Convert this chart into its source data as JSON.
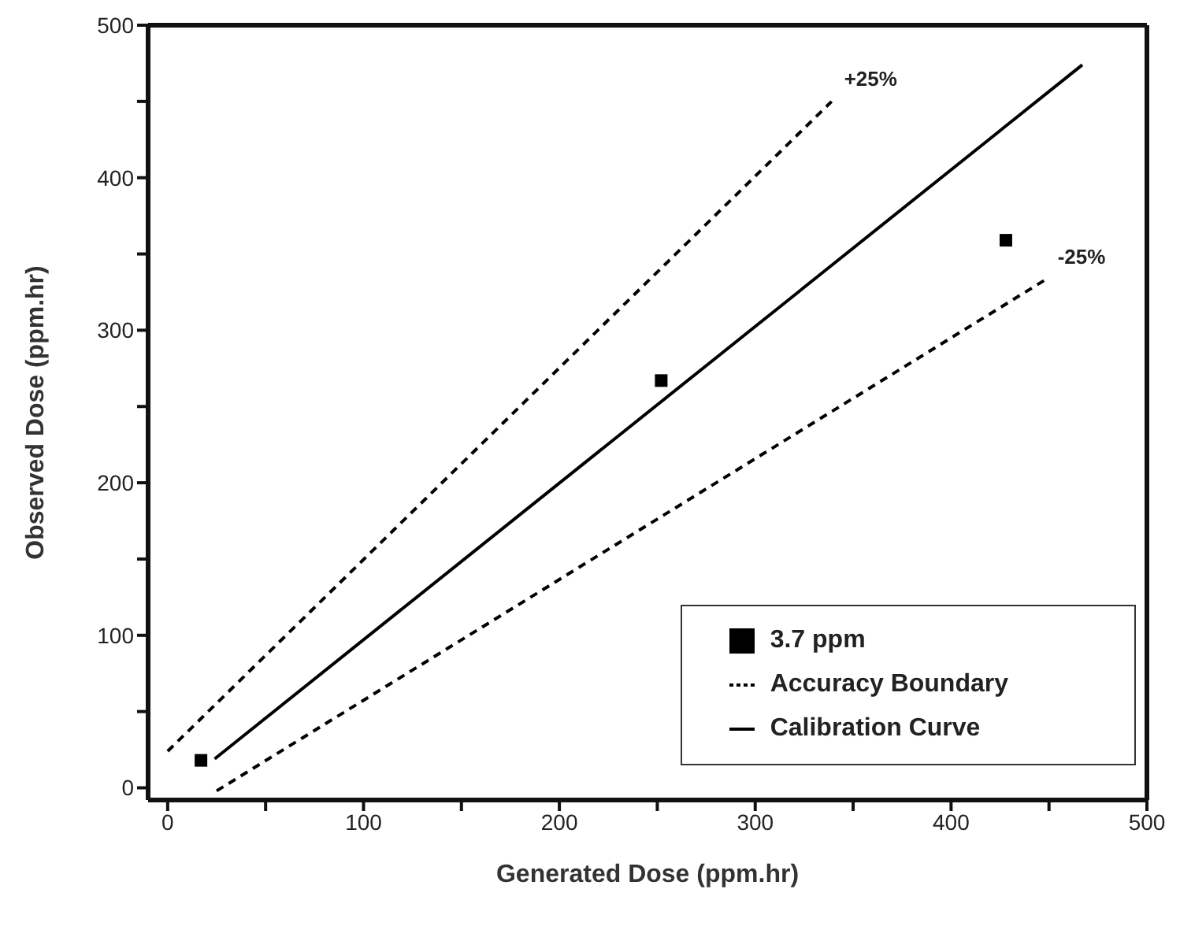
{
  "chart_data": {
    "type": "scatter",
    "xlabel": "Generated Dose (ppm.hr)",
    "ylabel": "Observed Dose (ppm.hr)",
    "xlim": [
      -10,
      500
    ],
    "ylim": [
      -8,
      500
    ],
    "xticks": [
      0,
      {
        "value": 50,
        "label": null
      },
      100,
      {
        "value": 150,
        "label": null
      },
      200,
      {
        "value": 250,
        "label": null
      },
      300,
      {
        "value": 350,
        "label": null
      },
      400,
      {
        "value": 450,
        "label": null
      },
      500
    ],
    "yticks": [
      0,
      {
        "value": 50,
        "label": null
      },
      100,
      {
        "value": 150,
        "label": null
      },
      200,
      {
        "value": 250,
        "label": null
      },
      300,
      {
        "value": 350,
        "label": null
      },
      400,
      {
        "value": 450,
        "label": null
      },
      500
    ],
    "grid": false,
    "legend": "bottom right",
    "series": [
      {
        "name": "3.7 ppm",
        "color": "#000000",
        "marker": "square",
        "x": [
          17,
          252,
          428
        ],
        "values": [
          18,
          267,
          359
        ]
      },
      {
        "type": "line",
        "name": "Accuracy Boundary",
        "color": "#000000",
        "line_style": "dashed",
        "marker": "none",
        "x": [
          0,
          339
        ],
        "values": [
          24,
          450
        ]
      },
      {
        "type": "line",
        "name": "Calibration Curve",
        "color": "#000000",
        "line_style": "solid",
        "marker": "none",
        "x": [
          24,
          467
        ],
        "values": [
          19,
          474
        ]
      },
      {
        "type": "line",
        "color": "#000000",
        "line_style": "dashed",
        "marker": "none",
        "x": [
          25,
          448
        ],
        "values": [
          -2,
          333
        ]
      }
    ],
    "annotations": [
      {
        "text": "+25%",
        "x": 339,
        "y": 450
      },
      {
        "text": "-25%",
        "x": 448,
        "y": 333
      }
    ]
  }
}
